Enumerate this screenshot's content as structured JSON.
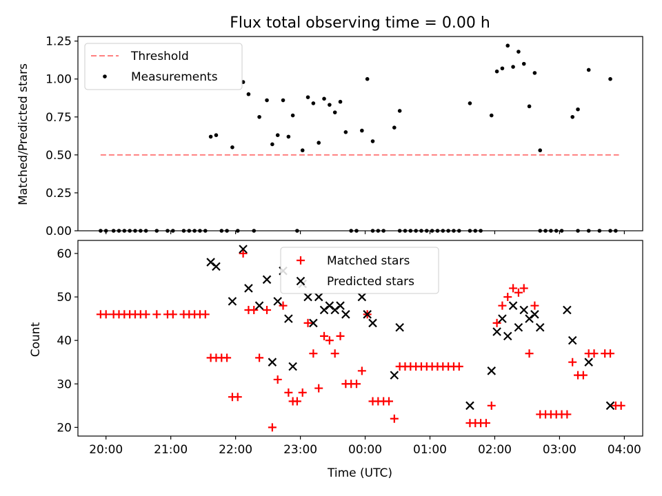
{
  "chart_data": [
    {
      "type": "scatter",
      "title": "Flux total observing time = 0.00 h",
      "xlabel": "",
      "ylabel": "Matched/Predicted stars",
      "xlim": [
        "19:34",
        "04:17"
      ],
      "ylim": [
        0,
        1.28
      ],
      "yticks": [
        "0.00",
        "0.25",
        "0.50",
        "0.75",
        "1.00",
        "1.25"
      ],
      "legend_position": "top-left",
      "series": [
        {
          "name": "Threshold",
          "kind": "line",
          "color": "#ff7f7f",
          "dash": true,
          "points": [
            [
              "19:55",
              0.5
            ],
            [
              "03:55",
              0.5
            ]
          ]
        },
        {
          "name": "Measurements",
          "kind": "dots",
          "color": "#000000",
          "points": [
            [
              "19:55",
              0
            ],
            [
              "20:00",
              0
            ],
            [
              "20:07",
              0
            ],
            [
              "20:12",
              0
            ],
            [
              "20:17",
              0
            ],
            [
              "20:22",
              0
            ],
            [
              "20:27",
              0
            ],
            [
              "20:32",
              0
            ],
            [
              "20:37",
              0
            ],
            [
              "20:47",
              0
            ],
            [
              "20:57",
              0
            ],
            [
              "21:02",
              0
            ],
            [
              "21:12",
              0
            ],
            [
              "21:17",
              0
            ],
            [
              "21:22",
              0
            ],
            [
              "21:27",
              0
            ],
            [
              "21:32",
              0
            ],
            [
              "21:47",
              0
            ],
            [
              "21:52",
              0
            ],
            [
              "22:02",
              0
            ],
            [
              "22:17",
              0
            ],
            [
              "22:57",
              0
            ],
            [
              "23:47",
              0
            ],
            [
              "23:52",
              0
            ],
            [
              "00:07",
              0
            ],
            [
              "00:12",
              0
            ],
            [
              "00:17",
              0
            ],
            [
              "00:32",
              0
            ],
            [
              "00:37",
              0
            ],
            [
              "00:42",
              0
            ],
            [
              "00:47",
              0
            ],
            [
              "00:52",
              0
            ],
            [
              "00:57",
              0
            ],
            [
              "01:02",
              0
            ],
            [
              "01:07",
              0
            ],
            [
              "01:12",
              0
            ],
            [
              "01:17",
              0
            ],
            [
              "01:22",
              0
            ],
            [
              "01:27",
              0
            ],
            [
              "01:37",
              0
            ],
            [
              "01:42",
              0
            ],
            [
              "01:47",
              0
            ],
            [
              "02:42",
              0
            ],
            [
              "02:47",
              0
            ],
            [
              "02:52",
              0
            ],
            [
              "02:57",
              0
            ],
            [
              "03:02",
              0
            ],
            [
              "03:17",
              0
            ],
            [
              "03:27",
              0
            ],
            [
              "03:37",
              0
            ],
            [
              "03:47",
              0
            ],
            [
              "03:52",
              0
            ],
            [
              "21:37",
              0.62
            ],
            [
              "21:42",
              0.63
            ],
            [
              "21:57",
              0.55
            ],
            [
              "22:07",
              0.98
            ],
            [
              "22:12",
              0.9
            ],
            [
              "22:22",
              0.75
            ],
            [
              "22:29",
              0.86
            ],
            [
              "22:34",
              0.57
            ],
            [
              "22:39",
              0.63
            ],
            [
              "22:44",
              0.86
            ],
            [
              "22:49",
              0.62
            ],
            [
              "22:53",
              0.76
            ],
            [
              "23:02",
              0.53
            ],
            [
              "23:07",
              0.88
            ],
            [
              "23:12",
              0.84
            ],
            [
              "23:17",
              0.58
            ],
            [
              "23:22",
              0.87
            ],
            [
              "23:27",
              0.83
            ],
            [
              "23:32",
              0.78
            ],
            [
              "23:37",
              0.85
            ],
            [
              "23:42",
              0.65
            ],
            [
              "23:57",
              0.66
            ],
            [
              "00:02",
              1.0
            ],
            [
              "00:07",
              0.59
            ],
            [
              "00:27",
              0.68
            ],
            [
              "00:32",
              0.79
            ],
            [
              "01:37",
              0.84
            ],
            [
              "01:57",
              0.76
            ],
            [
              "02:02",
              1.05
            ],
            [
              "02:07",
              1.07
            ],
            [
              "02:12",
              1.22
            ],
            [
              "02:17",
              1.08
            ],
            [
              "02:22",
              1.18
            ],
            [
              "02:27",
              1.1
            ],
            [
              "02:32",
              0.82
            ],
            [
              "02:37",
              1.04
            ],
            [
              "02:42",
              0.53
            ],
            [
              "03:12",
              0.75
            ],
            [
              "03:17",
              0.8
            ],
            [
              "03:27",
              1.06
            ],
            [
              "03:47",
              1.0
            ]
          ]
        }
      ]
    },
    {
      "type": "scatter",
      "title": "",
      "xlabel": "Time (UTC)",
      "ylabel": "Count",
      "xlim": [
        "19:34",
        "04:17"
      ],
      "ylim": [
        18,
        63
      ],
      "yticks": [
        "20",
        "30",
        "40",
        "50",
        "60"
      ],
      "xticks": [
        "20:00",
        "21:00",
        "22:00",
        "23:00",
        "00:00",
        "01:00",
        "02:00",
        "03:00",
        "04:00"
      ],
      "legend_position": "upper center",
      "series": [
        {
          "name": "Matched stars",
          "kind": "plus",
          "color": "#ff0000",
          "points": [
            [
              "19:55",
              46
            ],
            [
              "20:00",
              46
            ],
            [
              "20:07",
              46
            ],
            [
              "20:12",
              46
            ],
            [
              "20:17",
              46
            ],
            [
              "20:22",
              46
            ],
            [
              "20:27",
              46
            ],
            [
              "20:32",
              46
            ],
            [
              "20:37",
              46
            ],
            [
              "20:47",
              46
            ],
            [
              "20:57",
              46
            ],
            [
              "21:02",
              46
            ],
            [
              "21:12",
              46
            ],
            [
              "21:17",
              46
            ],
            [
              "21:22",
              46
            ],
            [
              "21:27",
              46
            ],
            [
              "21:32",
              46
            ],
            [
              "21:37",
              36
            ],
            [
              "21:42",
              36
            ],
            [
              "21:47",
              36
            ],
            [
              "21:52",
              36
            ],
            [
              "21:57",
              27
            ],
            [
              "22:02",
              27
            ],
            [
              "22:07",
              60
            ],
            [
              "22:12",
              47
            ],
            [
              "22:17",
              47
            ],
            [
              "22:22",
              36
            ],
            [
              "22:29",
              47
            ],
            [
              "22:34",
              20
            ],
            [
              "22:39",
              31
            ],
            [
              "22:44",
              48
            ],
            [
              "22:49",
              28
            ],
            [
              "22:53",
              26
            ],
            [
              "22:57",
              26
            ],
            [
              "23:02",
              28
            ],
            [
              "23:07",
              44
            ],
            [
              "23:12",
              37
            ],
            [
              "23:17",
              29
            ],
            [
              "23:22",
              41
            ],
            [
              "23:27",
              40
            ],
            [
              "23:32",
              37
            ],
            [
              "23:37",
              41
            ],
            [
              "23:42",
              30
            ],
            [
              "23:47",
              30
            ],
            [
              "23:52",
              30
            ],
            [
              "23:57",
              33
            ],
            [
              "00:02",
              46
            ],
            [
              "00:07",
              26
            ],
            [
              "00:12",
              26
            ],
            [
              "00:17",
              26
            ],
            [
              "00:22",
              26
            ],
            [
              "00:27",
              22
            ],
            [
              "00:32",
              34
            ],
            [
              "00:37",
              34
            ],
            [
              "00:42",
              34
            ],
            [
              "00:47",
              34
            ],
            [
              "00:52",
              34
            ],
            [
              "00:57",
              34
            ],
            [
              "01:02",
              34
            ],
            [
              "01:07",
              34
            ],
            [
              "01:12",
              34
            ],
            [
              "01:17",
              34
            ],
            [
              "01:22",
              34
            ],
            [
              "01:27",
              34
            ],
            [
              "01:37",
              21
            ],
            [
              "01:42",
              21
            ],
            [
              "01:47",
              21
            ],
            [
              "01:52",
              21
            ],
            [
              "01:57",
              25
            ],
            [
              "02:02",
              44
            ],
            [
              "02:07",
              48
            ],
            [
              "02:12",
              50
            ],
            [
              "02:17",
              52
            ],
            [
              "02:22",
              51
            ],
            [
              "02:27",
              52
            ],
            [
              "02:32",
              37
            ],
            [
              "02:37",
              48
            ],
            [
              "02:42",
              23
            ],
            [
              "02:47",
              23
            ],
            [
              "02:52",
              23
            ],
            [
              "02:57",
              23
            ],
            [
              "03:02",
              23
            ],
            [
              "03:07",
              23
            ],
            [
              "03:12",
              35
            ],
            [
              "03:17",
              32
            ],
            [
              "03:22",
              32
            ],
            [
              "03:27",
              37
            ],
            [
              "03:32",
              37
            ],
            [
              "03:42",
              37
            ],
            [
              "03:47",
              37
            ],
            [
              "03:52",
              25
            ],
            [
              "03:57",
              25
            ]
          ]
        },
        {
          "name": "Predicted stars",
          "kind": "cross",
          "color": "#000000",
          "points": [
            [
              "21:37",
              58
            ],
            [
              "21:42",
              57
            ],
            [
              "21:57",
              49
            ],
            [
              "22:07",
              61
            ],
            [
              "22:12",
              52
            ],
            [
              "22:22",
              48
            ],
            [
              "22:29",
              54
            ],
            [
              "22:34",
              35
            ],
            [
              "22:39",
              49
            ],
            [
              "22:44",
              56
            ],
            [
              "22:49",
              45
            ],
            [
              "22:53",
              34
            ],
            [
              "23:02",
              53
            ],
            [
              "23:07",
              50
            ],
            [
              "23:12",
              44
            ],
            [
              "23:17",
              50
            ],
            [
              "23:22",
              47
            ],
            [
              "23:27",
              48
            ],
            [
              "23:32",
              47
            ],
            [
              "23:37",
              48
            ],
            [
              "23:42",
              46
            ],
            [
              "23:57",
              50
            ],
            [
              "00:02",
              46
            ],
            [
              "00:07",
              44
            ],
            [
              "00:27",
              32
            ],
            [
              "00:32",
              43
            ],
            [
              "01:37",
              25
            ],
            [
              "01:57",
              33
            ],
            [
              "02:02",
              42
            ],
            [
              "02:07",
              45
            ],
            [
              "02:12",
              41
            ],
            [
              "02:17",
              48
            ],
            [
              "02:22",
              43
            ],
            [
              "02:27",
              47
            ],
            [
              "02:32",
              45
            ],
            [
              "02:37",
              46
            ],
            [
              "02:42",
              43
            ],
            [
              "03:07",
              47
            ],
            [
              "03:12",
              40
            ],
            [
              "03:27",
              35
            ],
            [
              "03:47",
              25
            ]
          ]
        }
      ]
    }
  ]
}
